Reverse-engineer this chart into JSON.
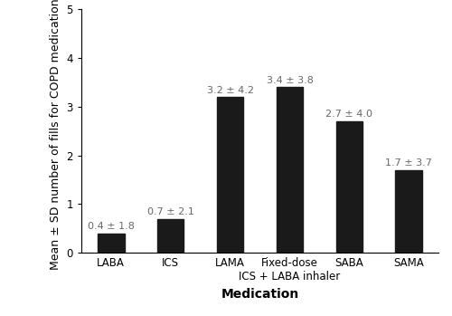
{
  "categories": [
    "LABA",
    "ICS",
    "LAMA",
    "Fixed-dose\nICS + LABA inhaler",
    "SABA",
    "SAMA"
  ],
  "values": [
    0.4,
    0.7,
    3.2,
    3.4,
    2.7,
    1.7
  ],
  "labels": [
    "0.4 ± 1.8",
    "0.7 ± 2.1",
    "3.2 ± 4.2",
    "3.4 ± 3.8",
    "2.7 ± 4.0",
    "1.7 ± 3.7"
  ],
  "bar_color": "#1a1a1a",
  "bar_width": 0.45,
  "xlabel": "Medication",
  "ylabel": "Mean ± SD number of fills for COPD medications",
  "ylim": [
    0,
    5
  ],
  "yticks": [
    0,
    1,
    2,
    3,
    4,
    5
  ],
  "label_fontsize": 8,
  "axis_label_fontsize": 9,
  "xlabel_fontsize": 10,
  "tick_fontsize": 8.5,
  "label_color": "#666666",
  "background_color": "#ffffff"
}
